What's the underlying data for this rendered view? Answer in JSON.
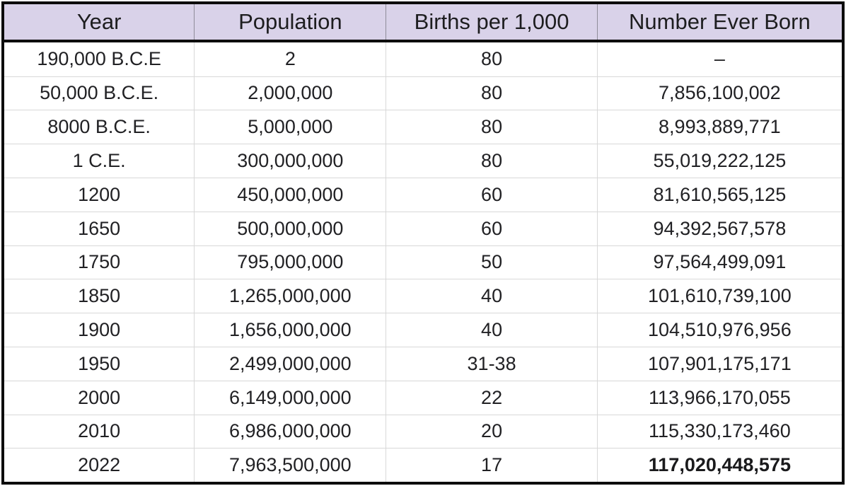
{
  "chart_data": {
    "type": "table",
    "columns": [
      "Year",
      "Population",
      "Births per 1,000",
      "Number Ever Born"
    ],
    "rows": [
      [
        "190,000 B.C.E",
        "2",
        "80",
        "–"
      ],
      [
        "50,000 B.C.E.",
        "2,000,000",
        "80",
        "7,856,100,002"
      ],
      [
        "8000 B.C.E.",
        "5,000,000",
        "80",
        "8,993,889,771"
      ],
      [
        "1 C.E.",
        "300,000,000",
        "80",
        "55,019,222,125"
      ],
      [
        "1200",
        "450,000,000",
        "60",
        "81,610,565,125"
      ],
      [
        "1650",
        "500,000,000",
        "60",
        "94,392,567,578"
      ],
      [
        "1750",
        "795,000,000",
        "50",
        "97,564,499,091"
      ],
      [
        "1850",
        "1,265,000,000",
        "40",
        "101,610,739,100"
      ],
      [
        "1900",
        "1,656,000,000",
        "40",
        "104,510,976,956"
      ],
      [
        "1950",
        "2,499,000,000",
        "31-38",
        "107,901,175,171"
      ],
      [
        "2000",
        "6,149,000,000",
        "22",
        "113,966,170,055"
      ],
      [
        "2010",
        "6,986,000,000",
        "20",
        "115,330,173,460"
      ],
      [
        "2022",
        "7,963,500,000",
        "17",
        "117,020,448,575"
      ]
    ],
    "emphasis": {
      "row_index": 12,
      "col_index": 3,
      "style": "bold"
    },
    "colors": {
      "header_bg": "#d9d2e9",
      "outer_border": "#0c0c0c",
      "header_rule": "#0c0c0c",
      "grid_line": "#d8d8d8",
      "header_divider": "#8f8c99",
      "text": "#212124"
    }
  }
}
